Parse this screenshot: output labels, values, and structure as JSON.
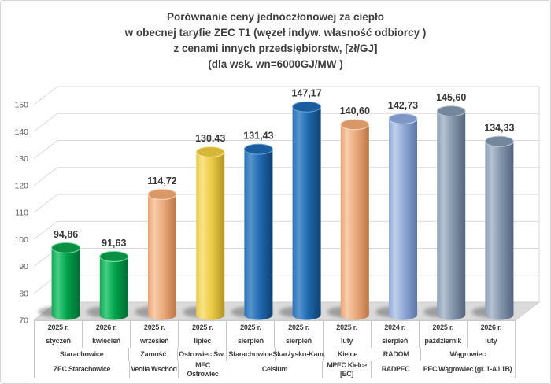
{
  "title": {
    "lines": [
      "Porównanie ceny jednoczłonowej za ciepło",
      "w obecnej taryfie ZEC T1 (węzeł indyw. własność odbiorcy )",
      "z cenami innych przedsiębiorstw, [zł/GJ]",
      "(dla wsk. wn=6000GJ/MW )"
    ]
  },
  "y_axis": {
    "min": 70,
    "max": 150,
    "step": 10,
    "ticks": [
      70,
      80,
      90,
      100,
      110,
      120,
      130,
      140,
      150
    ]
  },
  "chart_data": {
    "type": "bar",
    "subtype": "3d-cylinder",
    "title": "Porównanie ceny jednoczłonowej za ciepło w obecnej taryfie ZEC T1 (węzeł indyw. własność odbiorcy ) z cenami innych przedsiębiorstw, [zł/GJ] (dla wsk. wn=6000GJ/MW )",
    "unit": "zł/GJ",
    "ylim": [
      70,
      150
    ],
    "grid": true,
    "legend": false,
    "values": [
      94.86,
      91.63,
      114.72,
      130.43,
      131.43,
      147.17,
      140.6,
      142.73,
      145.6,
      134.33
    ],
    "labels": [
      "94,86",
      "91,63",
      "114,72",
      "130,43",
      "131,43",
      "147,17",
      "140,60",
      "142,73",
      "145,60",
      "134,33"
    ],
    "bar_colors": [
      "green",
      "green",
      "peach",
      "yellow",
      "blue",
      "blue",
      "peach",
      "periwinkle",
      "grayblue",
      "grayblue"
    ],
    "palette": {
      "green": {
        "edge": "#12a554",
        "hi": "#44cf82",
        "mid": "#00a04b",
        "dark": "#036b33",
        "top": "#0a8f45",
        "rim": "#7de2a8"
      },
      "peach": {
        "edge": "#e8a377",
        "hi": "#f7cda9",
        "mid": "#eba87c",
        "dark": "#b97748",
        "top": "#d99868",
        "rim": "#f9d9bd"
      },
      "yellow": {
        "edge": "#e9c94e",
        "hi": "#f8e488",
        "mid": "#ecca42",
        "dark": "#b1922a",
        "top": "#d6b73a",
        "rim": "#f9ec9f"
      },
      "blue": {
        "edge": "#2a72b5",
        "hi": "#5795cf",
        "mid": "#1f6ab0",
        "dark": "#113f6e",
        "top": "#1a5c9e",
        "rim": "#6ea4d6"
      },
      "periwinkle": {
        "edge": "#92a9d8",
        "hi": "#bfcfec",
        "mid": "#8fa7d6",
        "dark": "#5c76a5",
        "top": "#7e97c6",
        "rim": "#ccd9f0"
      },
      "grayblue": {
        "edge": "#8b9cb3",
        "hi": "#b6c2d1",
        "mid": "#8496ad",
        "dark": "#54657c",
        "top": "#75879d",
        "rim": "#c0ccd9"
      }
    },
    "categories": [
      {
        "year": "2025 r.",
        "month": "styczeń"
      },
      {
        "year": "2026 r.",
        "month": "kwiecień"
      },
      {
        "year": "2025 r.",
        "month": "wrzesień"
      },
      {
        "year": "2025 r.",
        "month": "lipiec"
      },
      {
        "year": "2025 r.",
        "month": "sierpień"
      },
      {
        "year": "2025 r.",
        "month": "sierpień"
      },
      {
        "year": "2025 r.",
        "month": "luty"
      },
      {
        "year": "2024 r.",
        "month": "sierpień"
      },
      {
        "year": "2025 r.",
        "month": "październik"
      },
      {
        "year": "2026 r.",
        "month": "luty"
      }
    ],
    "city_groups": [
      {
        "label": "Starachowice",
        "span": 2
      },
      {
        "label": "Zamość",
        "span": 1
      },
      {
        "label": "Ostrowiec Św.",
        "span": 1
      },
      {
        "label": "Starachowice",
        "span": 1
      },
      {
        "label": "Skarżysko-Kam.",
        "span": 1
      },
      {
        "label": "Kielce",
        "span": 1
      },
      {
        "label": "RADOM",
        "span": 1
      },
      {
        "label": "Wągrowiec",
        "span": 2
      }
    ],
    "company_groups": [
      {
        "label": "ZEC Starachowice",
        "span": 2
      },
      {
        "label": "Veolia Wschód",
        "span": 1
      },
      {
        "label": "MEC Ostrowiec",
        "span": 1
      },
      {
        "label": "Celsium",
        "span": 2
      },
      {
        "label": "MPEC Kielce [EC]",
        "span": 1
      },
      {
        "label": "RADPEC",
        "span": 1
      },
      {
        "label": "PEC Wągrowiec (gr. 1-A i 1B)",
        "span": 2
      }
    ],
    "colors_meta": {
      "gridline": "#d9d9d9",
      "floor": "#dbdbdb",
      "axis_text": "#595959",
      "value_text": "#383838",
      "title_text": "#3f3f3f"
    }
  }
}
